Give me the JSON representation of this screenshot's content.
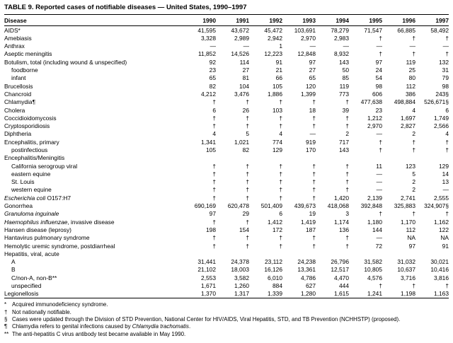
{
  "table": {
    "title": "TABLE 9. Reported cases of notifiable diseases — United States, 1990–1997",
    "columns": [
      "Disease",
      "1990",
      "1991",
      "1992",
      "1993",
      "1994",
      "1995",
      "1996",
      "1997"
    ],
    "rows": [
      {
        "label": "AIDS*",
        "indent": 0,
        "values": [
          "41,595",
          "43,672",
          "45,472",
          "103,691",
          "78,279",
          "71,547",
          "66,885",
          "58,492"
        ]
      },
      {
        "label": "Amebiasis",
        "indent": 0,
        "values": [
          "3,328",
          "2,989",
          "2,942",
          "2,970",
          "2,983",
          "†",
          "†",
          "†"
        ]
      },
      {
        "label": "Anthrax",
        "indent": 0,
        "values": [
          "—",
          "—",
          "1",
          "—",
          "—",
          "—",
          "—",
          "—"
        ]
      },
      {
        "label": "Aseptic meningitis",
        "indent": 0,
        "values": [
          "11,852",
          "14,526",
          "12,223",
          "12,848",
          "8,932",
          "†",
          "†",
          "†"
        ]
      },
      {
        "label": "Botulism, total (including wound & unspecified)",
        "indent": 0,
        "values": [
          "92",
          "114",
          "91",
          "97",
          "143",
          "97",
          "119",
          "132"
        ]
      },
      {
        "label": "foodborne",
        "indent": 1,
        "values": [
          "23",
          "27",
          "21",
          "27",
          "50",
          "24",
          "25",
          "31"
        ]
      },
      {
        "label": "infant",
        "indent": 1,
        "values": [
          "65",
          "81",
          "66",
          "65",
          "85",
          "54",
          "80",
          "79"
        ]
      },
      {
        "label": "Brucellosis",
        "indent": 0,
        "values": [
          "82",
          "104",
          "105",
          "120",
          "119",
          "98",
          "112",
          "98"
        ]
      },
      {
        "label": "Chancroid",
        "indent": 0,
        "values": [
          "4,212",
          "3,476",
          "1,886",
          "1,399",
          "773",
          "606",
          "386",
          "243§"
        ]
      },
      {
        "label": "Chlamydia¶",
        "indent": 0,
        "values": [
          "†",
          "†",
          "†",
          "†",
          "†",
          "477,638",
          "498,884",
          "526,671§"
        ]
      },
      {
        "label": "Cholera",
        "indent": 0,
        "values": [
          "6",
          "26",
          "103",
          "18",
          "39",
          "23",
          "4",
          "6"
        ]
      },
      {
        "label": "Coccidioidomycosis",
        "indent": 0,
        "values": [
          "†",
          "†",
          "†",
          "†",
          "†",
          "1,212",
          "1,697",
          "1,749"
        ]
      },
      {
        "label": "Cryptosporidiosis",
        "indent": 0,
        "values": [
          "†",
          "†",
          "†",
          "†",
          "†",
          "2,970",
          "2,827",
          "2,566"
        ]
      },
      {
        "label": "Diphtheria",
        "indent": 0,
        "values": [
          "4",
          "5",
          "4",
          "—",
          "2",
          "—",
          "2",
          "4"
        ]
      },
      {
        "label": "Encephalitis, primary",
        "indent": 0,
        "values": [
          "1,341",
          "1,021",
          "774",
          "919",
          "717",
          "†",
          "†",
          "†"
        ]
      },
      {
        "label": "postinfectious",
        "indent": 1,
        "values": [
          "105",
          "82",
          "129",
          "170",
          "143",
          "†",
          "†",
          "†"
        ]
      },
      {
        "label": "Encephalitis/Meningitis",
        "indent": 0,
        "values": [
          "",
          "",
          "",
          "",
          "",
          "",
          "",
          ""
        ]
      },
      {
        "label": "California serogroup viral",
        "indent": 1,
        "values": [
          "†",
          "†",
          "†",
          "†",
          "†",
          "11",
          "123",
          "129"
        ]
      },
      {
        "label": "eastern equine",
        "indent": 1,
        "values": [
          "†",
          "†",
          "†",
          "†",
          "†",
          "—",
          "5",
          "14"
        ]
      },
      {
        "label": "St. Louis",
        "indent": 1,
        "values": [
          "†",
          "†",
          "†",
          "†",
          "†",
          "—",
          "2",
          "13"
        ]
      },
      {
        "label": "western equine",
        "indent": 1,
        "values": [
          "†",
          "†",
          "†",
          "†",
          "†",
          "—",
          "2",
          "—"
        ]
      },
      {
        "label": [
          {
            "text": "Escherichia coli",
            "italic": true
          },
          {
            "text": " O157:H7",
            "italic": false
          }
        ],
        "indent": 0,
        "values": [
          "†",
          "†",
          "†",
          "†",
          "1,420",
          "2,139",
          "2,741",
          "2,555"
        ]
      },
      {
        "label": "Gonorrhea",
        "indent": 0,
        "values": [
          "690,169",
          "620,478",
          "501,409",
          "439,673",
          "418,068",
          "392,848",
          "325,883",
          "324,907§"
        ]
      },
      {
        "label": [
          {
            "text": "Granuloma inguinale",
            "italic": true
          }
        ],
        "indent": 0,
        "values": [
          "97",
          "29",
          "6",
          "19",
          "3",
          "†",
          "†",
          "†"
        ]
      },
      {
        "label": [
          {
            "text": "Haemophilus influenzae",
            "italic": true
          },
          {
            "text": ", invasive disease",
            "italic": false
          }
        ],
        "indent": 0,
        "values": [
          "†",
          "†",
          "1,412",
          "1,419",
          "1,174",
          "1,180",
          "1,170",
          "1,162"
        ]
      },
      {
        "label": "Hansen disease (leprosy)",
        "indent": 0,
        "values": [
          "198",
          "154",
          "172",
          "187",
          "136",
          "144",
          "112",
          "122"
        ]
      },
      {
        "label": "Hantavirus pulmonary syndrome",
        "indent": 0,
        "values": [
          "†",
          "†",
          "†",
          "†",
          "†",
          "—",
          "NA",
          "NA"
        ]
      },
      {
        "label": "Hemolytic uremic syndrome, postdiarrheal",
        "indent": 0,
        "values": [
          "†",
          "†",
          "†",
          "†",
          "†",
          "72",
          "97",
          "91"
        ]
      },
      {
        "label": "Hepatitis, viral, acute",
        "indent": 0,
        "values": [
          "",
          "",
          "",
          "",
          "",
          "",
          "",
          ""
        ]
      },
      {
        "label": "A",
        "indent": 1,
        "values": [
          "31,441",
          "24,378",
          "23,112",
          "24,238",
          "26,796",
          "31,582",
          "31,032",
          "30,021"
        ]
      },
      {
        "label": "B",
        "indent": 1,
        "values": [
          "21,102",
          "18,003",
          "16,126",
          "13,361",
          "12,517",
          "10,805",
          "10,637",
          "10,416"
        ]
      },
      {
        "label": "C/non-A, non-B**",
        "indent": 1,
        "values": [
          "2,553",
          "3,582",
          "6,010",
          "4,786",
          "4,470",
          "4,576",
          "3,716",
          "3,816"
        ]
      },
      {
        "label": "unspecified",
        "indent": 1,
        "values": [
          "1,671",
          "1,260",
          "884",
          "627",
          "444",
          "†",
          "†",
          "†"
        ]
      },
      {
        "label": "Legionellosis",
        "indent": 0,
        "values": [
          "1,370",
          "1,317",
          "1,339",
          "1,280",
          "1,615",
          "1,241",
          "1,198",
          "1,163"
        ]
      }
    ]
  },
  "footnotes": [
    {
      "marker": "*",
      "parts": [
        {
          "text": "Acquired immunodeficiency syndrome.",
          "italic": false
        }
      ]
    },
    {
      "marker": "†",
      "parts": [
        {
          "text": "Not nationally notifiable.",
          "italic": false
        }
      ]
    },
    {
      "marker": "§",
      "parts": [
        {
          "text": "Cases were updated through the Division of STD Prevention, National Center for HIV/AIDS, Viral Hepatitis, STD, and TB Prevention (NCHHSTP) (proposed).",
          "italic": false
        }
      ]
    },
    {
      "marker": "¶",
      "parts": [
        {
          "text": "Chlamydia refers to genital infections caused by ",
          "italic": false
        },
        {
          "text": "Chlamydia trachomatis",
          "italic": true
        },
        {
          "text": ".",
          "italic": false
        }
      ]
    },
    {
      "marker": "**",
      "parts": [
        {
          "text": "The anti-hepatitis C virus antibody test became available in May 1990.",
          "italic": false
        }
      ]
    }
  ]
}
